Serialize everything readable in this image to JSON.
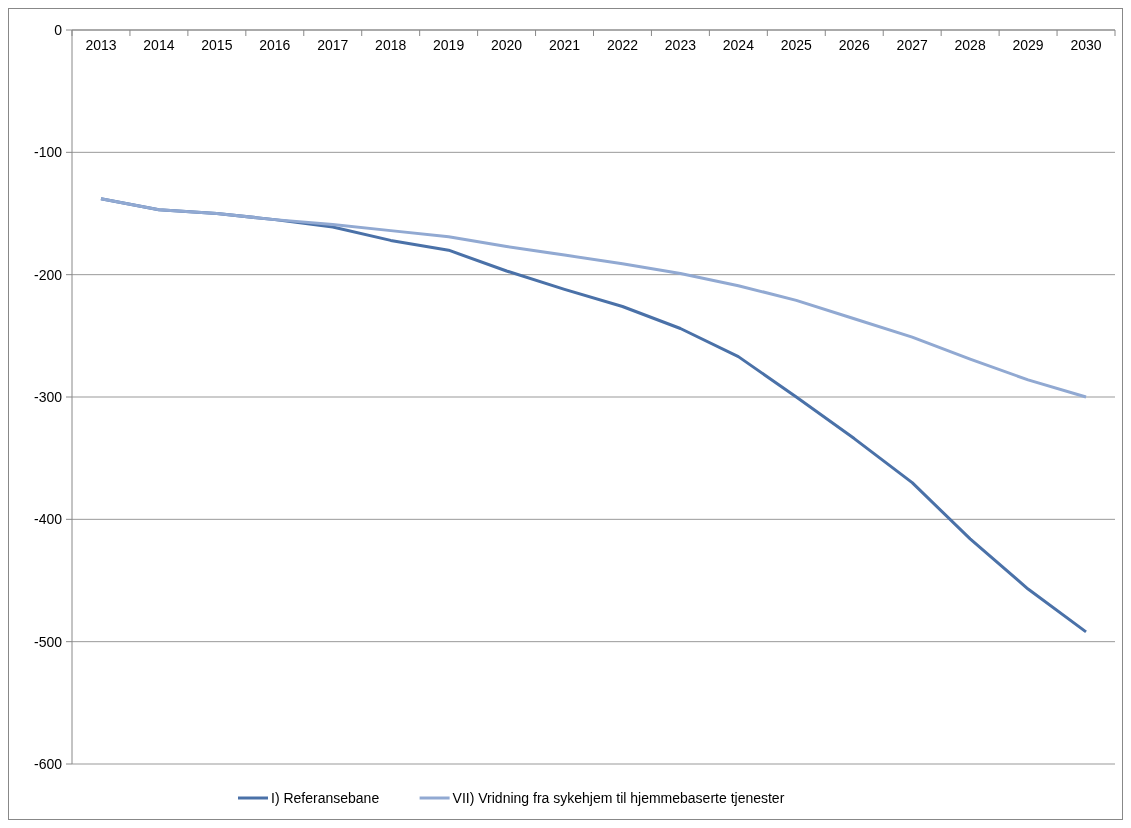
{
  "chart_data": {
    "type": "line",
    "categories": [
      "2013",
      "2014",
      "2015",
      "2016",
      "2017",
      "2018",
      "2019",
      "2020",
      "2021",
      "2022",
      "2023",
      "2024",
      "2025",
      "2026",
      "2027",
      "2028",
      "2029",
      "2030"
    ],
    "series": [
      {
        "name": "I) Referansebane",
        "color": "#4a71a8",
        "values": [
          -138,
          -147,
          -150,
          -155,
          -161,
          -172,
          -180,
          -197,
          -212,
          -226,
          -244,
          -267,
          -300,
          -334,
          -370,
          -416,
          -457,
          -492
        ]
      },
      {
        "name": "VII) Vridning fra sykehjem til hjemmebaserte tjenester",
        "color": "#91a9d2",
        "values": [
          -138,
          -147,
          -150,
          -155,
          -159,
          -164,
          -169,
          -177,
          -184,
          -191,
          -199,
          -209,
          -221,
          -236,
          -251,
          -269,
          -286,
          -300
        ]
      }
    ],
    "ylim": [
      -600,
      0
    ],
    "yticks": [
      0,
      -100,
      -200,
      -300,
      -400,
      -500,
      -600
    ],
    "grid": "y",
    "legend": "bottom",
    "marker": "none",
    "line_style": "solid"
  }
}
